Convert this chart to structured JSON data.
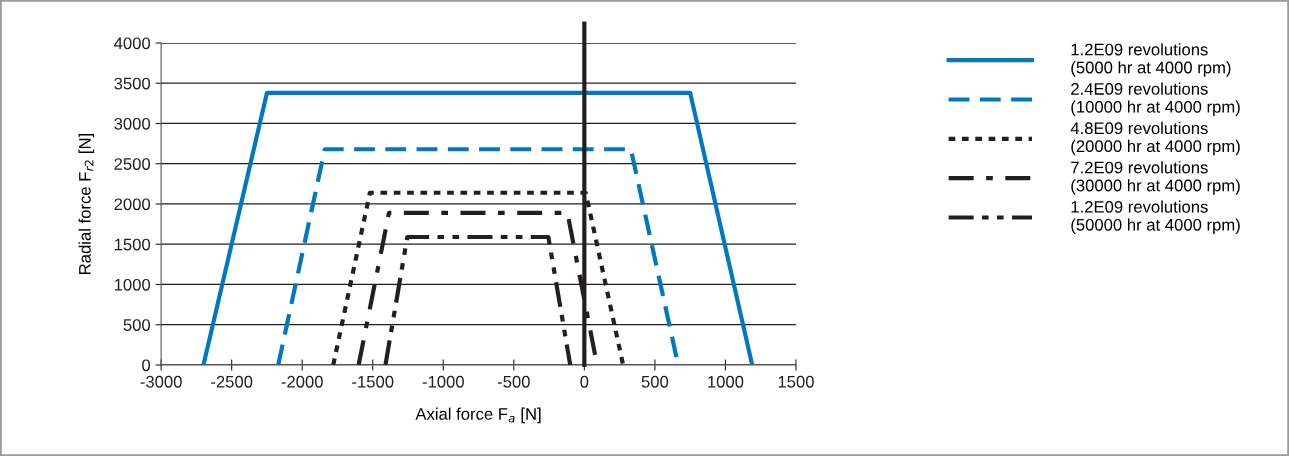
{
  "chart_data": {
    "type": "line",
    "xlabel": "Axial force F$_{a}$ [N]",
    "ylabel": "Radial force F$_{r2}$ [N]",
    "xlim": [
      -3000,
      1500
    ],
    "xticks": [
      -3000,
      -2500,
      -2000,
      -1500,
      -1000,
      -500,
      0,
      500,
      1000,
      1500
    ],
    "ylim": [
      0,
      4000
    ],
    "yticks": [
      0,
      500,
      1000,
      1500,
      2000,
      2500,
      3000,
      3500,
      4000
    ],
    "grid": "y",
    "legend": "right",
    "marker": "none",
    "ref_lines": [
      {
        "axis": "x",
        "value": 0,
        "color": "#231f20",
        "line_style": "solid"
      }
    ],
    "series": [
      {
        "name": "1.2E09 revolutions\n(5000 hr at 4000 rpm)",
        "color": "#0078c1",
        "line_style": "solid",
        "x": [
          -2700,
          -2250,
          750,
          1190
        ],
        "values": [
          0,
          3380,
          3380,
          0
        ]
      },
      {
        "name": "2.4E09 revolutions\n(10000 hr at 4000 rpm)",
        "color": "#0078c1",
        "line_style": "dashed",
        "x": [
          -2170,
          -1840,
          330,
          665
        ],
        "values": [
          0,
          2680,
          2680,
          0
        ]
      },
      {
        "name": "4.8E09 revolutions\n(20000 hr at 4000 rpm)",
        "color": "#231f20",
        "line_style": "dotted",
        "x": [
          -1780,
          -1520,
          10,
          275
        ],
        "values": [
          0,
          2140,
          2140,
          0
        ]
      },
      {
        "name": "7.2E09 revolutions\n(30000 hr at 4000 rpm)",
        "color": "#231f20",
        "line_style": "dashdot",
        "x": [
          -1600,
          -1385,
          -120,
          90
        ],
        "values": [
          0,
          1890,
          1890,
          0
        ]
      },
      {
        "name": "1.2E09 revolutions\n(50000 hr at 4000 rpm)",
        "color": "#231f20",
        "line_style": "dashdotdot",
        "x": [
          -1410,
          -1255,
          -255,
          -100
        ],
        "values": [
          0,
          1590,
          1590,
          0
        ]
      }
    ]
  }
}
